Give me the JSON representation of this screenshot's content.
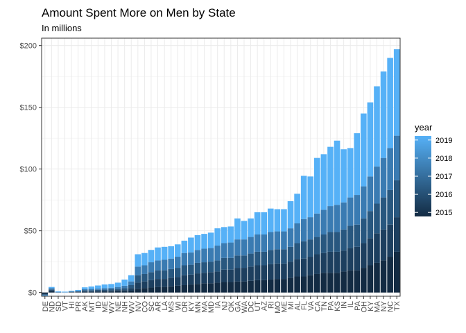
{
  "chart_data": {
    "type": "bar",
    "stacked": true,
    "title": "Amount Spent More on Men by State",
    "subtitle": "In millions",
    "xlabel": "",
    "ylabel": "",
    "ylim": [
      -3,
      206
    ],
    "y_ticks": [
      0,
      50,
      100,
      150,
      200
    ],
    "y_tick_labels": [
      "$0",
      "$50",
      "$100",
      "$150",
      "$200"
    ],
    "grid": true,
    "legend": {
      "title": "year",
      "position": "right",
      "type": "colorbar",
      "labels": [
        "2019",
        "2018",
        "2017",
        "2016",
        "2015"
      ],
      "range": [
        2015,
        2019
      ]
    },
    "colors": {
      "2015": "#132b43",
      "2016": "#1d3f5f",
      "2017": "#28577f",
      "2018": "#3a7bb2",
      "2019": "#56b1f7"
    },
    "categories": [
      "DE",
      "ND",
      "SD",
      "VT",
      "HI",
      "PR",
      "AK",
      "MT",
      "ID",
      "ME",
      "WY",
      "NE",
      "NH",
      "WV",
      "NV",
      "CO",
      "SC",
      "AR",
      "LA",
      "MS",
      "WI",
      "OR",
      "KY",
      "MN",
      "MA",
      "MD",
      "IA",
      "NJ",
      "OK",
      "GA",
      "WA",
      "DC",
      "UT",
      "AZ",
      "RI",
      "MO",
      "ME",
      "MI",
      "AL",
      "FL",
      "VA",
      "CA",
      "TN",
      "PA",
      "KS",
      "IN",
      "IL",
      "PA",
      "OH",
      "KY",
      "MA",
      "NY",
      "NC",
      "TX"
    ],
    "series": [
      {
        "name": "2015",
        "values": [
          -1,
          1,
          0,
          0,
          0.2,
          0.3,
          0.5,
          0.5,
          0.6,
          0.7,
          0.8,
          1,
          1,
          1.5,
          3,
          3.5,
          4,
          4.5,
          4.5,
          5,
          5.5,
          6,
          6.5,
          7,
          7.5,
          7.5,
          8,
          8.5,
          8.5,
          9,
          9,
          9.5,
          10,
          10,
          10.5,
          11,
          11,
          12,
          13,
          13,
          14,
          15,
          16,
          16,
          16,
          17,
          18,
          18,
          20,
          22,
          24,
          26,
          29,
          33
        ]
      },
      {
        "name": "2016",
        "values": [
          -0.5,
          1,
          0,
          0,
          0.2,
          0.3,
          0.7,
          0.7,
          0.8,
          0.8,
          0.9,
          1,
          1,
          2,
          5,
          5.5,
          6,
          6.5,
          6.5,
          7,
          7,
          8,
          8,
          8.5,
          8.5,
          9,
          9,
          10,
          10,
          11,
          11,
          11.5,
          12,
          12,
          12.5,
          12.5,
          12.5,
          13,
          14,
          14.5,
          15,
          16,
          16,
          17,
          17,
          17,
          18,
          19,
          20,
          22,
          24,
          25,
          26,
          28
        ]
      },
      {
        "name": "2017",
        "values": [
          -0.5,
          0.5,
          0,
          0,
          0.2,
          0.3,
          0.7,
          0.7,
          0.8,
          0.8,
          1,
          1,
          1.5,
          2.5,
          6,
          6,
          6.5,
          7,
          7,
          7,
          7.5,
          8,
          8,
          8.5,
          8.5,
          8.5,
          9,
          9.5,
          9.5,
          10,
          10,
          10.5,
          11,
          11,
          11.5,
          11.5,
          11.5,
          12,
          13,
          14,
          14,
          14,
          15,
          16,
          16,
          17,
          18,
          18,
          20,
          22,
          24,
          26,
          28,
          30
        ]
      },
      {
        "name": "2018",
        "values": [
          -0.5,
          1,
          0.5,
          0.2,
          0.3,
          0.5,
          0.8,
          1,
          1,
          1.2,
          1.2,
          1.5,
          2,
          3,
          7,
          7,
          8,
          8,
          8.5,
          8.5,
          9,
          10,
          10,
          10.5,
          11,
          11,
          12,
          12,
          12.5,
          13,
          13,
          13.5,
          14,
          14,
          14.5,
          14.5,
          14.5,
          15,
          16,
          18,
          18,
          19,
          20,
          21,
          22,
          22,
          23,
          24,
          26,
          28,
          30,
          32,
          34,
          36
        ]
      },
      {
        "name": "2019",
        "values": [
          -0.5,
          1,
          0.5,
          0.5,
          0.5,
          0.7,
          1.5,
          2,
          2.5,
          3,
          3,
          3.5,
          5,
          5,
          10,
          10,
          10,
          10.5,
          10.5,
          10,
          10,
          10,
          12,
          12,
          12,
          12.5,
          14,
          13,
          13,
          17,
          15,
          15,
          18,
          18,
          19,
          18,
          18,
          22,
          24,
          35,
          33,
          45,
          45,
          48,
          52,
          43,
          40,
          50,
          59,
          60,
          65,
          70,
          73,
          70
        ]
      }
    ]
  }
}
